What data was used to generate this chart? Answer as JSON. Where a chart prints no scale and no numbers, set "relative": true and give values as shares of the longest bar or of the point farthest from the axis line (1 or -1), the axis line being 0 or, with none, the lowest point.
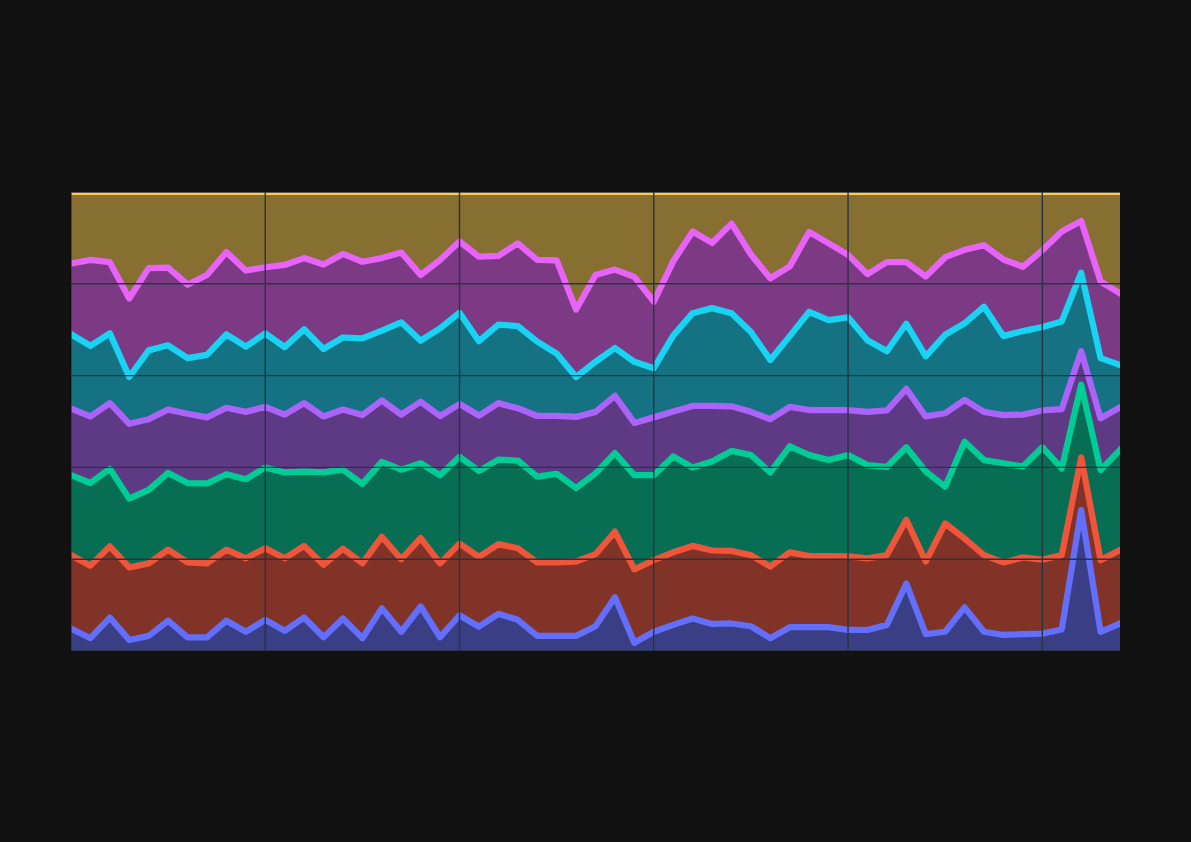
{
  "chart_data": {
    "type": "area",
    "stacked": true,
    "relative": true,
    "grid": true,
    "legend": false,
    "categories": [
      null,
      null,
      null,
      null,
      null,
      null,
      null,
      null,
      null,
      null,
      null,
      null,
      null,
      null,
      null,
      null,
      null,
      null,
      null,
      null,
      null,
      null,
      null,
      null,
      null,
      null,
      null,
      null,
      null,
      null,
      null,
      null,
      null,
      null,
      null,
      null,
      null,
      null,
      null,
      null,
      null,
      null,
      null,
      null,
      null,
      null,
      null,
      null,
      null,
      null,
      null,
      null,
      null,
      null,
      null
    ],
    "series": [
      {
        "color": "#636efa",
        "values": [
          0.049,
          0.028,
          0.073,
          0.024,
          0.033,
          0.066,
          0.03,
          0.03,
          0.066,
          0.042,
          0.068,
          0.044,
          0.073,
          0.03,
          0.071,
          0.028,
          0.093,
          0.042,
          0.097,
          0.03,
          0.078,
          0.053,
          0.081,
          0.068,
          0.033,
          0.033,
          0.033,
          0.054,
          0.117,
          0.018,
          0.042,
          0.057,
          0.071,
          0.059,
          0.06,
          0.054,
          0.028,
          0.052,
          0.052,
          0.052,
          0.046,
          0.046,
          0.057,
          0.147,
          0.037,
          0.042,
          0.095,
          0.042,
          0.035,
          0.037,
          0.038,
          0.047,
          0.307,
          0.042,
          0.06
        ]
      },
      {
        "color": "#ef553b",
        "values": [
          0.16,
          0.158,
          0.155,
          0.158,
          0.158,
          0.155,
          0.163,
          0.161,
          0.155,
          0.16,
          0.156,
          0.158,
          0.156,
          0.158,
          0.152,
          0.163,
          0.156,
          0.158,
          0.149,
          0.161,
          0.156,
          0.152,
          0.152,
          0.156,
          0.16,
          0.16,
          0.162,
          0.157,
          0.143,
          0.16,
          0.156,
          0.158,
          0.158,
          0.16,
          0.158,
          0.155,
          0.156,
          0.163,
          0.155,
          0.155,
          0.16,
          0.156,
          0.152,
          0.139,
          0.158,
          0.236,
          0.15,
          0.167,
          0.158,
          0.167,
          0.161,
          0.162,
          0.115,
          0.156,
          0.16
        ]
      },
      {
        "color": "#00cc96",
        "values": [
          0.174,
          0.18,
          0.169,
          0.15,
          0.16,
          0.167,
          0.173,
          0.174,
          0.164,
          0.172,
          0.176,
          0.187,
          0.162,
          0.201,
          0.172,
          0.173,
          0.163,
          0.195,
          0.163,
          0.192,
          0.189,
          0.187,
          0.184,
          0.191,
          0.187,
          0.193,
          0.16,
          0.176,
          0.171,
          0.205,
          0.185,
          0.209,
          0.171,
          0.194,
          0.218,
          0.218,
          0.205,
          0.231,
          0.22,
          0.209,
          0.221,
          0.203,
          0.192,
          0.158,
          0.196,
          0.08,
          0.211,
          0.207,
          0.216,
          0.198,
          0.245,
          0.189,
          0.158,
          0.196,
          0.218
        ]
      },
      {
        "color": "#ab63fa",
        "values": [
          0.145,
          0.145,
          0.143,
          0.163,
          0.154,
          0.138,
          0.151,
          0.144,
          0.145,
          0.147,
          0.132,
          0.126,
          0.149,
          0.122,
          0.131,
          0.15,
          0.134,
          0.12,
          0.134,
          0.129,
          0.115,
          0.121,
          0.123,
          0.114,
          0.132,
          0.126,
          0.155,
          0.134,
          0.125,
          0.114,
          0.126,
          0.098,
          0.134,
          0.121,
          0.097,
          0.094,
          0.116,
          0.086,
          0.098,
          0.109,
          0.098,
          0.116,
          0.123,
          0.127,
          0.12,
          0.16,
          0.091,
          0.105,
          0.105,
          0.113,
          0.08,
          0.129,
          0.073,
          0.113,
          0.093
        ]
      },
      {
        "color": "#19d3f3",
        "values": [
          0.162,
          0.154,
          0.152,
          0.102,
          0.15,
          0.14,
          0.121,
          0.136,
          0.16,
          0.142,
          0.16,
          0.147,
          0.161,
          0.147,
          0.157,
          0.167,
          0.152,
          0.201,
          0.133,
          0.191,
          0.199,
          0.162,
          0.171,
          0.179,
          0.162,
          0.136,
          0.087,
          0.109,
          0.104,
          0.133,
          0.107,
          0.165,
          0.202,
          0.213,
          0.203,
          0.174,
          0.129,
          0.154,
          0.214,
          0.196,
          0.202,
          0.156,
          0.129,
          0.142,
          0.131,
          0.171,
          0.167,
          0.229,
          0.172,
          0.182,
          0.182,
          0.191,
          0.171,
          0.131,
          0.092
        ]
      },
      {
        "color": "#e763fa",
        "values": [
          0.154,
          0.187,
          0.155,
          0.171,
          0.179,
          0.169,
          0.16,
          0.174,
          0.179,
          0.166,
          0.144,
          0.179,
          0.155,
          0.184,
          0.182,
          0.167,
          0.158,
          0.152,
          0.143,
          0.149,
          0.155,
          0.184,
          0.15,
          0.18,
          0.178,
          0.203,
          0.147,
          0.189,
          0.171,
          0.185,
          0.145,
          0.162,
          0.178,
          0.142,
          0.195,
          0.169,
          0.178,
          0.152,
          0.174,
          0.167,
          0.136,
          0.144,
          0.194,
          0.134,
          0.174,
          0.169,
          0.16,
          0.134,
          0.167,
          0.14,
          0.167,
          0.196,
          0.113,
          0.167,
          0.156
        ]
      },
      {
        "color": "#fecb52",
        "values": [
          0.156,
          0.148,
          0.153,
          0.232,
          0.166,
          0.165,
          0.202,
          0.181,
          0.131,
          0.171,
          0.164,
          0.159,
          0.144,
          0.158,
          0.135,
          0.152,
          0.144,
          0.132,
          0.181,
          0.148,
          0.108,
          0.141,
          0.139,
          0.112,
          0.148,
          0.149,
          0.256,
          0.181,
          0.169,
          0.185,
          0.239,
          0.151,
          0.086,
          0.111,
          0.069,
          0.136,
          0.188,
          0.162,
          0.087,
          0.112,
          0.137,
          0.179,
          0.153,
          0.153,
          0.184,
          0.142,
          0.126,
          0.116,
          0.147,
          0.163,
          0.127,
          0.086,
          0.063,
          0.195,
          0.221
        ]
      }
    ]
  }
}
